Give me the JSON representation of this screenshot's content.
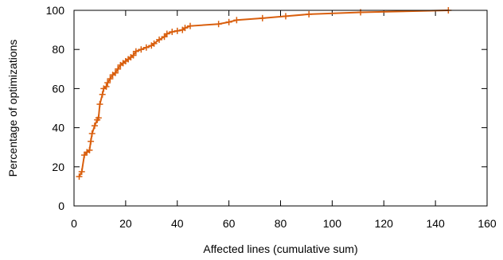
{
  "chart_data": {
    "type": "line",
    "title": "",
    "xlabel": "Affected lines (cumulative sum)",
    "ylabel": "Percentage of optimizations",
    "xlim": [
      0,
      160
    ],
    "ylim": [
      0,
      100
    ],
    "xticks": [
      0,
      20,
      40,
      60,
      80,
      100,
      120,
      140,
      160
    ],
    "yticks": [
      0,
      20,
      40,
      60,
      80,
      100
    ],
    "grid": false,
    "legend": "none",
    "series": [
      {
        "color": "#d95f0e",
        "marker": "plus",
        "points": [
          [
            2,
            15
          ],
          [
            3,
            17.5
          ],
          [
            4,
            26
          ],
          [
            5,
            27.5
          ],
          [
            6,
            28.5
          ],
          [
            6.5,
            33
          ],
          [
            7,
            37
          ],
          [
            8,
            41
          ],
          [
            9,
            44
          ],
          [
            9.5,
            45
          ],
          [
            10,
            52
          ],
          [
            11,
            57
          ],
          [
            11.5,
            60
          ],
          [
            12.5,
            61
          ],
          [
            13,
            63
          ],
          [
            14,
            65
          ],
          [
            15,
            67
          ],
          [
            16,
            68
          ],
          [
            17,
            70
          ],
          [
            18,
            72
          ],
          [
            19,
            73
          ],
          [
            20,
            74
          ],
          [
            21,
            75
          ],
          [
            22,
            76
          ],
          [
            23,
            77
          ],
          [
            24,
            79
          ],
          [
            26,
            80
          ],
          [
            28,
            81
          ],
          [
            30,
            82
          ],
          [
            31,
            83
          ],
          [
            33,
            85
          ],
          [
            35,
            86.5
          ],
          [
            36,
            88
          ],
          [
            38,
            89
          ],
          [
            40,
            89.5
          ],
          [
            42,
            90
          ],
          [
            43,
            91
          ],
          [
            45,
            92
          ],
          [
            56,
            93
          ],
          [
            60,
            94
          ],
          [
            63,
            95
          ],
          [
            73,
            96
          ],
          [
            82,
            97
          ],
          [
            91,
            98
          ],
          [
            111,
            99
          ],
          [
            145,
            100
          ]
        ]
      }
    ]
  }
}
